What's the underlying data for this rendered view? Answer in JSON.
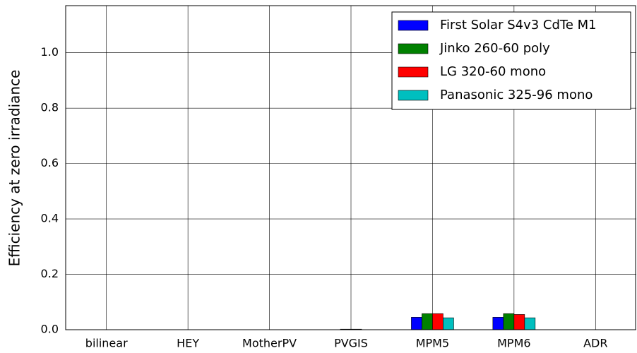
{
  "chart_data": {
    "type": "bar",
    "y_label": "Efficiency at zero irradiance",
    "categories": [
      "bilinear",
      "HEY",
      "MotherPV",
      "PVGIS",
      "MPM5",
      "MPM6",
      "ADR"
    ],
    "series": [
      {
        "name": "First Solar S4v3 CdTe M1",
        "color": "#0000ff",
        "values": [
          0,
          0,
          0,
          0,
          0.045,
          0.045,
          0
        ]
      },
      {
        "name": "Jinko 260-60 poly",
        "color": "#008000",
        "values": [
          0,
          0,
          0,
          0.002,
          0.058,
          0.058,
          0
        ]
      },
      {
        "name": "LG 320-60 mono",
        "color": "#ff0000",
        "values": [
          0,
          0,
          0,
          0.002,
          0.058,
          0.055,
          0
        ]
      },
      {
        "name": "Panasonic 325-96 mono",
        "color": "#00bfbf",
        "values": [
          0,
          0,
          0,
          0,
          0.043,
          0.043,
          0
        ]
      }
    ],
    "ylim": [
      0,
      1.17
    ],
    "yticks": [
      {
        "value": 0,
        "label": "0.0"
      },
      0.2,
      0.4,
      0.6,
      0.8,
      {
        "value": 1,
        "label": "1.0"
      }
    ],
    "grid": true,
    "legend": "upper right"
  }
}
